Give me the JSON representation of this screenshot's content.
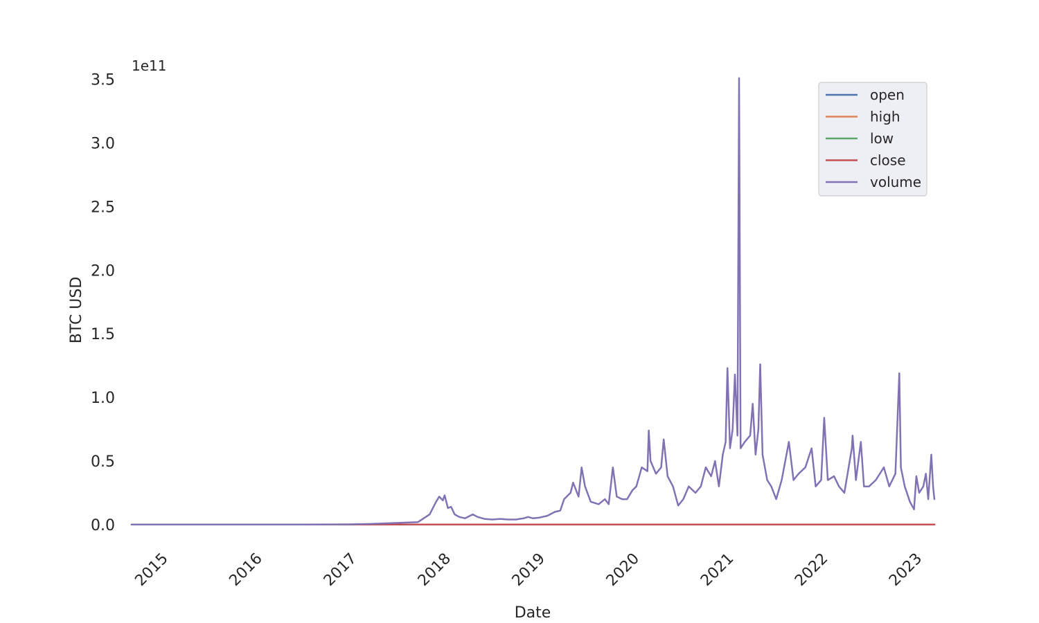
{
  "chart_data": {
    "type": "line",
    "title": "",
    "xlabel": "Date",
    "ylabel": "BTC USD",
    "y_offset_label": "1e11",
    "y_multiplier": 100000000000,
    "xlim": [
      "2014-09-17",
      "2023-03-25"
    ],
    "ylim": [
      -0.175,
      3.58
    ],
    "y_ticks": [
      0.0,
      0.5,
      1.0,
      1.5,
      2.0,
      2.5,
      3.0,
      3.5
    ],
    "y_tick_labels": [
      "0.0",
      "0.5",
      "1.0",
      "1.5",
      "2.0",
      "2.5",
      "3.0",
      "3.5"
    ],
    "x_ticks": [
      "2015-01-01",
      "2016-01-01",
      "2017-01-01",
      "2018-01-01",
      "2019-01-01",
      "2020-01-01",
      "2021-01-01",
      "2022-01-01",
      "2023-01-01"
    ],
    "x_tick_labels": [
      "2015",
      "2016",
      "2017",
      "2018",
      "2019",
      "2020",
      "2021",
      "2022",
      "2023"
    ],
    "grid": false,
    "legend_position": "top-right",
    "series": [
      {
        "name": "open",
        "color": "#4c72b0",
        "points": [
          [
            "2014-09-17",
            0.0
          ],
          [
            "2023-03-25",
            0.0
          ]
        ]
      },
      {
        "name": "high",
        "color": "#dd8452",
        "points": [
          [
            "2014-09-17",
            0.0
          ],
          [
            "2023-03-25",
            0.0
          ]
        ]
      },
      {
        "name": "low",
        "color": "#55a868",
        "points": [
          [
            "2014-09-17",
            0.0
          ],
          [
            "2023-03-25",
            0.0
          ]
        ]
      },
      {
        "name": "close",
        "color": "#c44e52",
        "points": [
          [
            "2014-09-17",
            0.0
          ],
          [
            "2023-03-25",
            0.0
          ]
        ]
      },
      {
        "name": "volume",
        "color": "#8172b3",
        "points": [
          [
            "2014-09-17",
            0.0
          ],
          [
            "2015-06-01",
            0.0
          ],
          [
            "2016-01-01",
            0.0
          ],
          [
            "2016-07-01",
            0.001
          ],
          [
            "2017-01-01",
            0.002
          ],
          [
            "2017-04-01",
            0.005
          ],
          [
            "2017-06-01",
            0.01
          ],
          [
            "2017-08-01",
            0.015
          ],
          [
            "2017-10-01",
            0.02
          ],
          [
            "2017-11-15",
            0.08
          ],
          [
            "2017-12-10",
            0.18
          ],
          [
            "2017-12-22",
            0.22
          ],
          [
            "2018-01-05",
            0.19
          ],
          [
            "2018-01-12",
            0.23
          ],
          [
            "2018-01-25",
            0.13
          ],
          [
            "2018-02-06",
            0.14
          ],
          [
            "2018-02-20",
            0.08
          ],
          [
            "2018-03-10",
            0.06
          ],
          [
            "2018-04-01",
            0.05
          ],
          [
            "2018-05-01",
            0.08
          ],
          [
            "2018-05-20",
            0.06
          ],
          [
            "2018-06-15",
            0.045
          ],
          [
            "2018-07-15",
            0.04
          ],
          [
            "2018-08-15",
            0.045
          ],
          [
            "2018-09-15",
            0.04
          ],
          [
            "2018-10-15",
            0.04
          ],
          [
            "2018-11-15",
            0.05
          ],
          [
            "2018-12-01",
            0.06
          ],
          [
            "2018-12-20",
            0.05
          ],
          [
            "2019-01-15",
            0.055
          ],
          [
            "2019-02-15",
            0.07
          ],
          [
            "2019-03-15",
            0.1
          ],
          [
            "2019-04-05",
            0.11
          ],
          [
            "2019-04-20",
            0.2
          ],
          [
            "2019-05-15",
            0.25
          ],
          [
            "2019-05-25",
            0.33
          ],
          [
            "2019-06-15",
            0.22
          ],
          [
            "2019-06-27",
            0.45
          ],
          [
            "2019-07-10",
            0.3
          ],
          [
            "2019-08-01",
            0.18
          ],
          [
            "2019-09-01",
            0.16
          ],
          [
            "2019-09-25",
            0.2
          ],
          [
            "2019-10-10",
            0.16
          ],
          [
            "2019-10-26",
            0.45
          ],
          [
            "2019-11-10",
            0.22
          ],
          [
            "2019-12-01",
            0.2
          ],
          [
            "2019-12-20",
            0.2
          ],
          [
            "2020-01-10",
            0.27
          ],
          [
            "2020-01-25",
            0.3
          ],
          [
            "2020-02-15",
            0.45
          ],
          [
            "2020-03-08",
            0.42
          ],
          [
            "2020-03-13",
            0.74
          ],
          [
            "2020-03-20",
            0.5
          ],
          [
            "2020-04-10",
            0.4
          ],
          [
            "2020-04-30",
            0.45
          ],
          [
            "2020-05-10",
            0.67
          ],
          [
            "2020-05-25",
            0.38
          ],
          [
            "2020-06-15",
            0.3
          ],
          [
            "2020-07-05",
            0.15
          ],
          [
            "2020-07-25",
            0.2
          ],
          [
            "2020-08-15",
            0.3
          ],
          [
            "2020-09-10",
            0.25
          ],
          [
            "2020-10-01",
            0.3
          ],
          [
            "2020-10-20",
            0.45
          ],
          [
            "2020-11-10",
            0.38
          ],
          [
            "2020-11-25",
            0.5
          ],
          [
            "2020-12-10",
            0.3
          ],
          [
            "2020-12-25",
            0.55
          ],
          [
            "2021-01-05",
            0.65
          ],
          [
            "2021-01-12",
            1.23
          ],
          [
            "2021-01-22",
            0.6
          ],
          [
            "2021-02-01",
            0.75
          ],
          [
            "2021-02-10",
            1.18
          ],
          [
            "2021-02-20",
            0.7
          ],
          [
            "2021-02-26",
            3.51
          ],
          [
            "2021-03-04",
            0.6
          ],
          [
            "2021-03-20",
            0.65
          ],
          [
            "2021-04-10",
            0.7
          ],
          [
            "2021-04-20",
            0.95
          ],
          [
            "2021-05-01",
            0.55
          ],
          [
            "2021-05-12",
            0.75
          ],
          [
            "2021-05-19",
            1.26
          ],
          [
            "2021-05-28",
            0.55
          ],
          [
            "2021-06-15",
            0.35
          ],
          [
            "2021-07-01",
            0.3
          ],
          [
            "2021-07-20",
            0.2
          ],
          [
            "2021-08-10",
            0.35
          ],
          [
            "2021-09-07",
            0.65
          ],
          [
            "2021-09-25",
            0.35
          ],
          [
            "2021-10-15",
            0.4
          ],
          [
            "2021-11-10",
            0.45
          ],
          [
            "2021-12-04",
            0.6
          ],
          [
            "2021-12-20",
            0.3
          ],
          [
            "2022-01-10",
            0.35
          ],
          [
            "2022-01-22",
            0.84
          ],
          [
            "2022-02-05",
            0.35
          ],
          [
            "2022-03-01",
            0.38
          ],
          [
            "2022-03-20",
            0.3
          ],
          [
            "2022-04-10",
            0.25
          ],
          [
            "2022-05-09",
            0.6
          ],
          [
            "2022-05-12",
            0.7
          ],
          [
            "2022-05-25",
            0.35
          ],
          [
            "2022-06-13",
            0.65
          ],
          [
            "2022-06-25",
            0.3
          ],
          [
            "2022-07-15",
            0.3
          ],
          [
            "2022-08-10",
            0.35
          ],
          [
            "2022-09-10",
            0.45
          ],
          [
            "2022-10-01",
            0.3
          ],
          [
            "2022-10-25",
            0.4
          ],
          [
            "2022-11-09",
            1.19
          ],
          [
            "2022-11-15",
            0.45
          ],
          [
            "2022-11-30",
            0.3
          ],
          [
            "2022-12-20",
            0.18
          ],
          [
            "2023-01-05",
            0.12
          ],
          [
            "2023-01-14",
            0.38
          ],
          [
            "2023-01-25",
            0.25
          ],
          [
            "2023-02-10",
            0.3
          ],
          [
            "2023-02-20",
            0.4
          ],
          [
            "2023-03-01",
            0.2
          ],
          [
            "2023-03-13",
            0.55
          ],
          [
            "2023-03-20",
            0.3
          ],
          [
            "2023-03-25",
            0.2
          ]
        ]
      }
    ]
  }
}
